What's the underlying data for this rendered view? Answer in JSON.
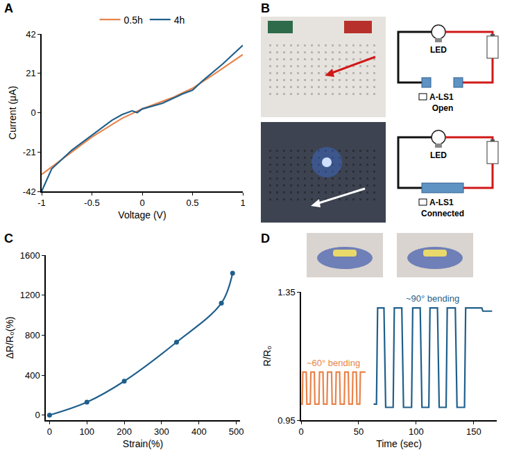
{
  "chart_data": [
    {
      "panel": "A",
      "type": "line",
      "x_label": "Voltage (V)",
      "y_label": "Current (μA)",
      "xlim": [
        -1,
        1
      ],
      "ylim": [
        -42,
        42
      ],
      "xticks": [
        -1,
        -0.5,
        0,
        0.5,
        1
      ],
      "yticks": [
        -42,
        -21,
        0,
        21,
        42
      ],
      "grid": false,
      "legend": "top",
      "series": [
        {
          "name": "0.5h",
          "color": "#e8834a",
          "x": [
            -1,
            -0.8,
            -0.5,
            -0.2,
            0,
            0.3,
            0.5,
            0.7,
            1
          ],
          "values": [
            -33,
            -25,
            -13,
            -3,
            2,
            8,
            13,
            20,
            31
          ]
        },
        {
          "name": "4h",
          "color": "#1f5f8b",
          "x": [
            -1,
            -0.9,
            -0.7,
            -0.5,
            -0.3,
            -0.2,
            -0.1,
            -0.05,
            0,
            0.2,
            0.4,
            0.5,
            0.6,
            0.8,
            1
          ],
          "values": [
            -42,
            -30,
            -20,
            -12,
            -4,
            -1,
            1,
            0,
            2,
            5,
            10,
            12,
            17,
            26,
            36
          ]
        }
      ]
    },
    {
      "panel": "C",
      "type": "line",
      "marker": "circle",
      "line_style": "spline",
      "x_label": "Strain(%)",
      "y_label": "ΔR/R₀(%)",
      "x": [
        0,
        100,
        200,
        340,
        460,
        490
      ],
      "values": [
        0,
        130,
        340,
        730,
        1120,
        1420
      ],
      "color": "#1f5f8b",
      "xlim": [
        -10,
        510
      ],
      "ylim": [
        -50,
        1600
      ],
      "xticks": [
        0,
        100,
        200,
        300,
        400,
        500
      ],
      "yticks": [
        0,
        400,
        800,
        1200,
        1600
      ],
      "grid": false
    },
    {
      "panel": "D",
      "type": "line",
      "x_label": "Time (sec)",
      "y_label": "R/R₀",
      "xlim": [
        0,
        170
      ],
      "ylim": [
        0.95,
        1.35
      ],
      "xticks": [
        0,
        50,
        100,
        150
      ],
      "yticks": [
        0.95,
        1.35
      ],
      "grid": false,
      "series": [
        {
          "name": "~60° bending",
          "color": "#e8834a",
          "x": [
            0,
            1,
            1.5,
            4.5,
            5,
            8,
            8.5,
            11.5,
            12,
            15.5,
            16,
            19,
            19.5,
            22.5,
            23,
            26.5,
            27,
            30,
            30.5,
            33.5,
            34,
            37.5,
            38,
            41,
            41.5,
            44.5,
            45,
            48,
            48.5,
            51,
            51.5,
            56
          ],
          "values": [
            1.0,
            1.0,
            1.1,
            1.1,
            1.0,
            1.0,
            1.1,
            1.1,
            1.0,
            1.0,
            1.1,
            1.1,
            1.0,
            1.0,
            1.1,
            1.1,
            1.0,
            1.0,
            1.1,
            1.1,
            1.0,
            1.0,
            1.1,
            1.1,
            1.0,
            1.0,
            1.1,
            1.1,
            1.0,
            1.0,
            1.1,
            1.1
          ]
        },
        {
          "name": "~90° bending",
          "color": "#1f5f8b",
          "x": [
            63,
            65.5,
            66.5,
            72,
            73.5,
            80,
            81,
            87.5,
            89,
            96,
            97,
            103.5,
            105,
            111,
            112,
            118.5,
            120,
            126,
            127,
            134,
            135.5,
            142,
            143,
            157,
            158,
            166
          ],
          "values": [
            1.0,
            1.0,
            1.3,
            1.3,
            0.99,
            0.99,
            1.3,
            1.3,
            0.99,
            0.99,
            1.3,
            1.3,
            0.99,
            0.99,
            1.3,
            1.3,
            0.99,
            0.99,
            1.3,
            1.3,
            0.99,
            0.99,
            1.3,
            1.3,
            1.29,
            1.29
          ]
        }
      ]
    }
  ],
  "diagram": {
    "panel": "B",
    "states": [
      {
        "lamp": "LED",
        "component": "A-LS1",
        "state": "Open"
      },
      {
        "lamp": "LED",
        "component": "A-LS1",
        "state": "Connected"
      }
    ]
  }
}
